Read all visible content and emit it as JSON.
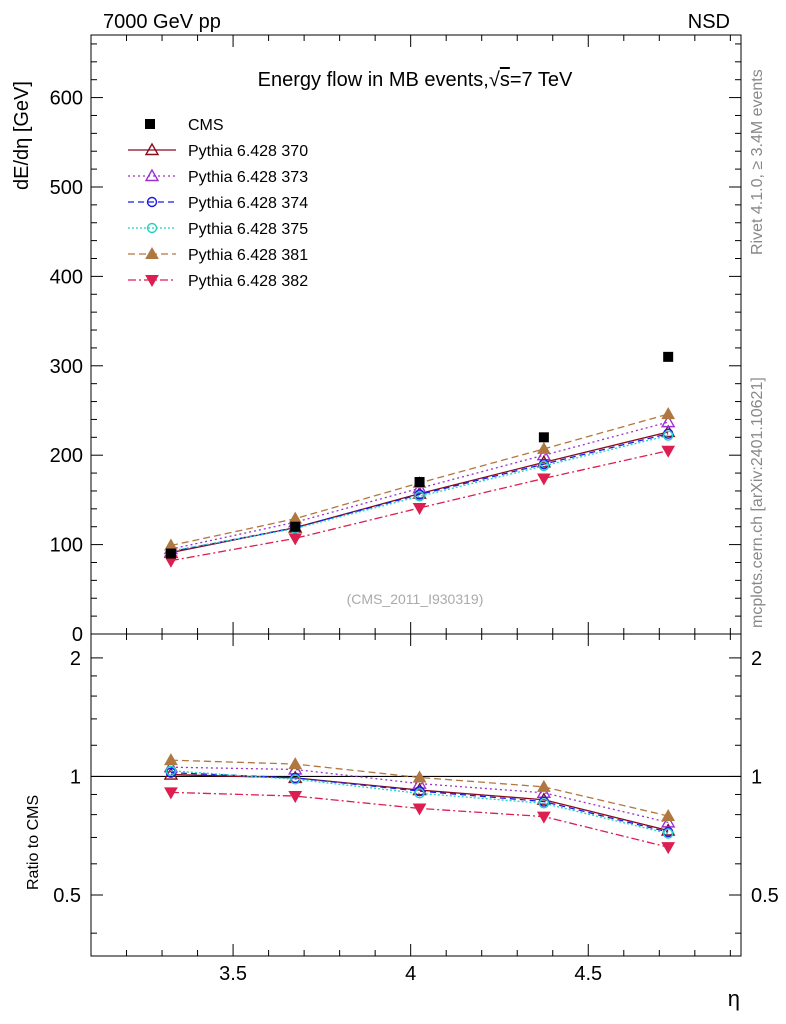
{
  "header": {
    "left": "7000 GeV pp",
    "right": "NSD",
    "side_rivet": "Rivet 4.1.0, ≥ 3.4M events",
    "side_mcplots": "mcplots.cern.ch [arXiv:2401.10621]",
    "analysis_id": "(CMS_2011_I930319)"
  },
  "chart_data": {
    "type": "line",
    "title": "Energy flow in MB events,√s=7 TeV",
    "title_prefix": "Energy flow in MB events,",
    "title_root": "√",
    "title_s": "s",
    "title_suffix": "=7 TeV",
    "xlabel": "η",
    "ylabel": "dE/dη [GeV]",
    "ratio_ylabel": "Ratio to CMS",
    "xlim": [
      3.1,
      4.93
    ],
    "ylim": [
      0,
      670
    ],
    "ratio_ylim": [
      0.35,
      2.3
    ],
    "x_ticks": [
      3.5,
      4,
      4.5
    ],
    "x_tick_labels": [
      "3.5",
      "4",
      "4.5"
    ],
    "y_ticks": [
      0,
      100,
      200,
      300,
      400,
      500,
      600
    ],
    "y_tick_labels": [
      "0",
      "100",
      "200",
      "300",
      "400",
      "500",
      "600"
    ],
    "ratio_ticks": [
      0.5,
      1,
      2
    ],
    "ratio_tick_labels": [
      "0.5",
      "1",
      "2"
    ],
    "x": [
      3.325,
      3.675,
      4.025,
      4.375,
      4.725
    ],
    "data": {
      "name": "CMS",
      "values": [
        90,
        120,
        170,
        220,
        310
      ]
    },
    "series": [
      {
        "name": "Pythia 6.428 370",
        "color": "#8b0a1a",
        "dash": "",
        "marker": "triangle-up-open",
        "values": [
          91,
          119,
          157,
          192,
          226
        ]
      },
      {
        "name": "Pythia 6.428 373",
        "color": "#9b30d0",
        "dash": "2,3",
        "marker": "triangle-up-open",
        "values": [
          95,
          125,
          163,
          200,
          237
        ]
      },
      {
        "name": "Pythia 6.428 374",
        "color": "#1a1ae6",
        "dash": "6,4",
        "marker": "circle-open",
        "values": [
          92,
          119,
          156,
          190,
          224
        ]
      },
      {
        "name": "Pythia 6.428 375",
        "color": "#22d3c0",
        "dash": "2,2",
        "marker": "circle-open",
        "values": [
          93,
          118,
          154,
          188,
          222
        ]
      },
      {
        "name": "Pythia 6.428 381",
        "color": "#b07840",
        "dash": "7,4",
        "marker": "triangle-up-filled",
        "values": [
          99,
          129,
          169,
          207,
          246
        ]
      },
      {
        "name": "Pythia 6.428 382",
        "color": "#dc1e50",
        "dash": "8,3,2,3",
        "marker": "triangle-down-filled",
        "values": [
          82,
          107,
          141,
          174,
          205
        ]
      }
    ]
  }
}
